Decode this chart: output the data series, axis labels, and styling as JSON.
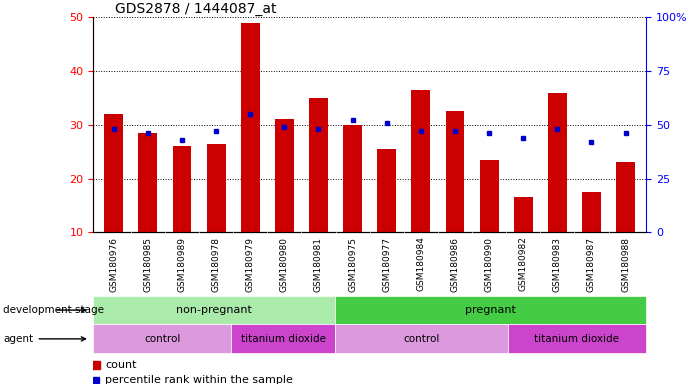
{
  "title": "GDS2878 / 1444087_at",
  "samples": [
    "GSM180976",
    "GSM180985",
    "GSM180989",
    "GSM180978",
    "GSM180979",
    "GSM180980",
    "GSM180981",
    "GSM180975",
    "GSM180977",
    "GSM180984",
    "GSM180986",
    "GSM180990",
    "GSM180982",
    "GSM180983",
    "GSM180987",
    "GSM180988"
  ],
  "counts": [
    32.0,
    28.5,
    26.0,
    26.5,
    49.0,
    31.0,
    35.0,
    30.0,
    25.5,
    36.5,
    32.5,
    23.5,
    16.5,
    36.0,
    17.5,
    23.0
  ],
  "percentile_ranks_pct": [
    48,
    46,
    43,
    47,
    55,
    49,
    48,
    52,
    51,
    47,
    47,
    46,
    44,
    48,
    42,
    46
  ],
  "ylim_left": [
    10,
    50
  ],
  "ylim_right": [
    0,
    100
  ],
  "bar_color": "#cc0000",
  "square_color": "#0000cc",
  "background_color": "#ffffff",
  "tick_bg_color": "#c8c8c8",
  "dev_stage_groups": [
    {
      "label": "non-pregnant",
      "start": 0,
      "end": 7,
      "color": "#aaeaaa"
    },
    {
      "label": "pregnant",
      "start": 7,
      "end": 16,
      "color": "#44cc44"
    }
  ],
  "agent_groups": [
    {
      "label": "control",
      "start": 0,
      "end": 4,
      "color": "#dd99dd"
    },
    {
      "label": "titanium dioxide",
      "start": 4,
      "end": 7,
      "color": "#cc44cc"
    },
    {
      "label": "control",
      "start": 7,
      "end": 12,
      "color": "#dd99dd"
    },
    {
      "label": "titanium dioxide",
      "start": 12,
      "end": 16,
      "color": "#cc44cc"
    }
  ],
  "legend_count_label": "count",
  "legend_pct_label": "percentile rank within the sample"
}
